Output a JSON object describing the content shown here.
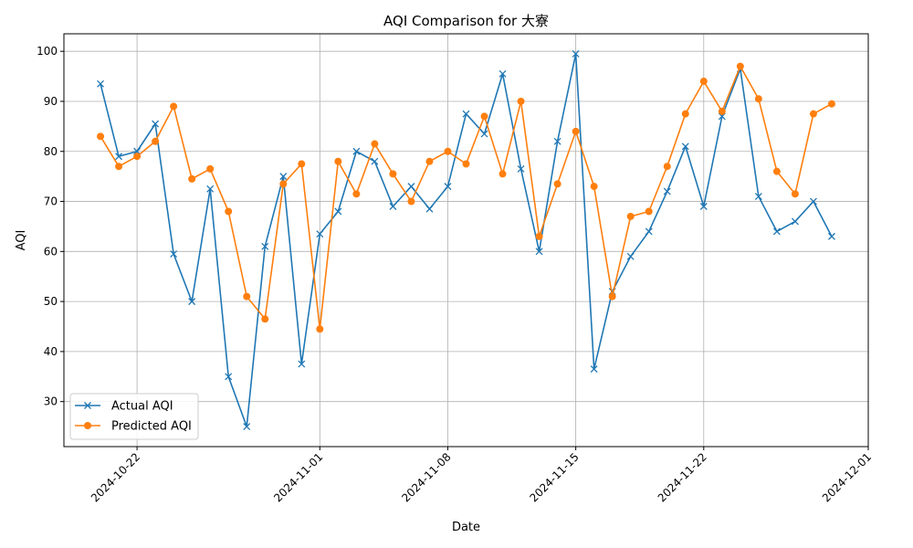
{
  "chart_data": {
    "type": "line",
    "title": "AQI Comparison for 大寮",
    "xlabel": "Date",
    "ylabel": "AQI",
    "x_tick_labels": [
      "2024-10-22",
      "2024-11-01",
      "2024-11-08",
      "2024-11-15",
      "2024-11-22",
      "2024-12-01"
    ],
    "x_tick_dates": [
      "2024-10-22",
      "2024-11-01",
      "2024-11-08",
      "2024-11-15",
      "2024-11-22",
      "2024-12-01"
    ],
    "xlim": [
      "2024-10-18",
      "2024-12-01"
    ],
    "y_ticks": [
      30,
      40,
      50,
      60,
      70,
      80,
      90,
      100
    ],
    "ylim": [
      21,
      103.5
    ],
    "grid": true,
    "legend_position": "lower-left",
    "x": [
      "2024-10-20",
      "2024-10-21",
      "2024-10-22",
      "2024-10-23",
      "2024-10-24",
      "2024-10-25",
      "2024-10-26",
      "2024-10-27",
      "2024-10-28",
      "2024-10-29",
      "2024-10-30",
      "2024-10-31",
      "2024-11-01",
      "2024-11-02",
      "2024-11-03",
      "2024-11-04",
      "2024-11-05",
      "2024-11-06",
      "2024-11-07",
      "2024-11-08",
      "2024-11-09",
      "2024-11-10",
      "2024-11-11",
      "2024-11-12",
      "2024-11-13",
      "2024-11-14",
      "2024-11-15",
      "2024-11-16",
      "2024-11-17",
      "2024-11-18",
      "2024-11-19",
      "2024-11-20",
      "2024-11-21",
      "2024-11-22",
      "2024-11-23",
      "2024-11-24",
      "2024-11-25",
      "2024-11-26",
      "2024-11-27",
      "2024-11-28",
      "2024-11-29"
    ],
    "series": [
      {
        "name": "Actual AQI",
        "color": "#1f77b4",
        "marker": "x",
        "values": [
          93.5,
          79,
          80,
          85.5,
          59.5,
          50,
          72.5,
          35,
          25,
          61,
          75,
          37.5,
          63.5,
          68,
          80,
          78,
          69,
          73,
          68.5,
          73,
          87.5,
          83.5,
          95.5,
          76.5,
          60,
          82,
          99.5,
          36.5,
          52,
          59,
          64,
          72,
          81,
          69,
          87,
          96.5,
          71,
          64,
          66,
          70,
          63
        ]
      },
      {
        "name": "Predicted AQI",
        "color": "#ff7f0e",
        "marker": "o",
        "values": [
          83,
          77,
          79,
          82,
          89,
          74.5,
          76.5,
          68,
          51,
          46.5,
          73.5,
          77.5,
          44.5,
          78,
          71.5,
          81.5,
          75.5,
          70,
          78,
          80,
          77.5,
          87,
          75.5,
          90,
          63,
          73.5,
          84,
          73,
          51,
          67,
          68,
          77,
          87.5,
          94,
          88,
          97,
          90.5,
          76,
          71.5,
          87.5,
          89.5
        ]
      }
    ]
  }
}
